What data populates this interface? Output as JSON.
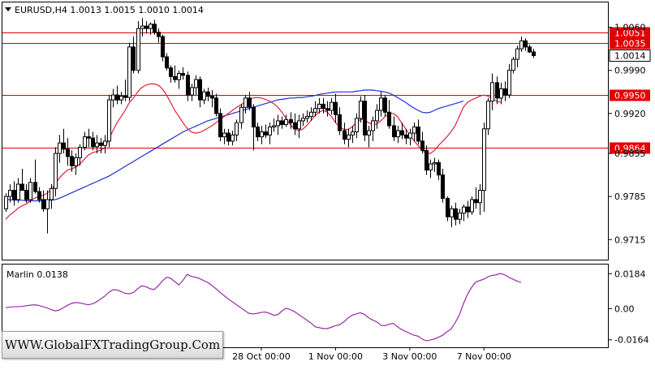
{
  "chart_data": [
    {
      "type": "candlestick",
      "symbol_header": "EURUSD,H4  1.0013 1.0015 1.0010 1.0014",
      "ylim": [
        0.9685,
        1.0078
      ],
      "y_ticks": [
        "1.0060",
        "0.9990",
        "0.9920",
        "0.9855",
        "0.9785",
        "0.9715"
      ],
      "x_labels": [
        {
          "label": "28 Oct 00:00",
          "bar": 62
        },
        {
          "label": "1 Nov 00:00",
          "bar": 80
        },
        {
          "label": "3 Nov 00:00",
          "bar": 98
        },
        {
          "label": "7 Nov 00:00",
          "bar": 116
        }
      ],
      "levels": [
        {
          "label": "1.0051",
          "value": 1.0051,
          "color": "#e00000"
        },
        {
          "label": "1.0035",
          "value": 1.0035,
          "color": "#e00000"
        },
        {
          "label": "0.9950",
          "value": 0.995,
          "color": "#e00000"
        },
        {
          "label": "0.9864",
          "value": 0.9864,
          "color": "#e00000"
        }
      ],
      "current_price": {
        "label": "1.0014",
        "value": 1.0014
      },
      "candles": [
        [
          0.9765,
          0.979,
          0.976,
          0.9785
        ],
        [
          0.9785,
          0.9805,
          0.9775,
          0.9795
        ],
        [
          0.9795,
          0.981,
          0.977,
          0.978
        ],
        [
          0.978,
          0.9815,
          0.9775,
          0.9805
        ],
        [
          0.9805,
          0.983,
          0.9795,
          0.9795
        ],
        [
          0.9795,
          0.9805,
          0.9775,
          0.978
        ],
        [
          0.978,
          0.9815,
          0.9775,
          0.9808
        ],
        [
          0.9808,
          0.9845,
          0.979,
          0.9793
        ],
        [
          0.9793,
          0.98,
          0.9775,
          0.978
        ],
        [
          0.978,
          0.9795,
          0.976,
          0.9765
        ],
        [
          0.9765,
          0.9795,
          0.9725,
          0.978
        ],
        [
          0.978,
          0.9805,
          0.9765,
          0.9798
        ],
        [
          0.9798,
          0.9865,
          0.9785,
          0.9855
        ],
        [
          0.9855,
          0.9885,
          0.984,
          0.9872
        ],
        [
          0.9872,
          0.9895,
          0.9855,
          0.9862
        ],
        [
          0.9862,
          0.988,
          0.9835,
          0.985
        ],
        [
          0.985,
          0.986,
          0.9825,
          0.9835
        ],
        [
          0.9835,
          0.9855,
          0.982,
          0.9848
        ],
        [
          0.9848,
          0.987,
          0.9835,
          0.9865
        ],
        [
          0.9865,
          0.989,
          0.986,
          0.9882
        ],
        [
          0.9882,
          0.9895,
          0.9865,
          0.988
        ],
        [
          0.988,
          0.989,
          0.986,
          0.9866
        ],
        [
          0.9866,
          0.9885,
          0.9855,
          0.9872
        ],
        [
          0.9872,
          0.988,
          0.9855,
          0.9868
        ],
        [
          0.9868,
          0.9885,
          0.9855,
          0.9875
        ],
        [
          0.9875,
          0.995,
          0.9865,
          0.9942
        ],
        [
          0.9942,
          0.996,
          0.993,
          0.995
        ],
        [
          0.995,
          0.9965,
          0.9935,
          0.9942
        ],
        [
          0.9942,
          0.9955,
          0.9935,
          0.9948
        ],
        [
          0.9948,
          0.9975,
          0.994,
          0.9946
        ],
        [
          0.9946,
          1.0035,
          0.994,
          1.0028
        ],
        [
          1.0028,
          1.0045,
          0.9985,
          0.999
        ],
        [
          0.999,
          1.007,
          0.9985,
          1.0058
        ],
        [
          1.0058,
          1.0075,
          1.0045,
          1.0062
        ],
        [
          1.0062,
          1.007,
          1.005,
          1.0058
        ],
        [
          1.0058,
          1.0068,
          1.0048,
          1.0065
        ],
        [
          1.0065,
          1.0072,
          1.0048,
          1.0052
        ],
        [
          1.0052,
          1.0058,
          1.0035,
          1.0045
        ],
        [
          1.0045,
          1.0048,
          1.0005,
          1.0012
        ],
        [
          1.0012,
          1.0018,
          0.999,
          0.9994
        ],
        [
          0.9994,
          0.9998,
          0.997,
          0.998
        ],
        [
          0.998,
          0.9998,
          0.997,
          0.9975
        ],
        [
          0.9975,
          0.999,
          0.996,
          0.9985
        ],
        [
          0.9985,
          0.9995,
          0.9975,
          0.9982
        ],
        [
          0.9982,
          0.9988,
          0.994,
          0.995
        ],
        [
          0.995,
          0.9968,
          0.994,
          0.9962
        ],
        [
          0.9962,
          0.9982,
          0.995,
          0.9975
        ],
        [
          0.9975,
          0.998,
          0.993,
          0.9942
        ],
        [
          0.9942,
          0.996,
          0.9935,
          0.9955
        ],
        [
          0.9955,
          0.9962,
          0.994,
          0.9948
        ],
        [
          0.9948,
          0.9958,
          0.993,
          0.9945
        ],
        [
          0.9945,
          0.9952,
          0.9915,
          0.992
        ],
        [
          0.992,
          0.9928,
          0.9875,
          0.9882
        ],
        [
          0.9882,
          0.9895,
          0.987,
          0.9888
        ],
        [
          0.9888,
          0.9895,
          0.9868,
          0.9875
        ],
        [
          0.9875,
          0.9892,
          0.9868,
          0.9885
        ],
        [
          0.9885,
          0.991,
          0.9875,
          0.9905
        ],
        [
          0.9905,
          0.9935,
          0.9895,
          0.993
        ],
        [
          0.993,
          0.995,
          0.992,
          0.9945
        ],
        [
          0.9945,
          0.9955,
          0.9925,
          0.993
        ],
        [
          0.993,
          0.9935,
          0.986,
          0.9898
        ],
        [
          0.9898,
          0.9905,
          0.9875,
          0.9882
        ],
        [
          0.9882,
          0.99,
          0.987,
          0.989
        ],
        [
          0.989,
          0.9902,
          0.988,
          0.9885
        ],
        [
          0.9885,
          0.9905,
          0.987,
          0.9898
        ],
        [
          0.9898,
          0.9912,
          0.989,
          0.99
        ],
        [
          0.99,
          0.9918,
          0.9885,
          0.9908
        ],
        [
          0.9908,
          0.9915,
          0.9895,
          0.9902
        ],
        [
          0.9902,
          0.9918,
          0.9898,
          0.991
        ],
        [
          0.991,
          0.9922,
          0.9895,
          0.9905
        ],
        [
          0.9905,
          0.992,
          0.9885,
          0.9895
        ],
        [
          0.9895,
          0.9918,
          0.988,
          0.9908
        ],
        [
          0.9908,
          0.992,
          0.99,
          0.9912
        ],
        [
          0.9912,
          0.9925,
          0.9905,
          0.9915
        ],
        [
          0.9915,
          0.993,
          0.9908,
          0.9922
        ],
        [
          0.9922,
          0.994,
          0.9915,
          0.9928
        ],
        [
          0.9928,
          0.9945,
          0.992,
          0.9935
        ],
        [
          0.9935,
          0.9945,
          0.992,
          0.9928
        ],
        [
          0.9928,
          0.994,
          0.9915,
          0.9925
        ],
        [
          0.9925,
          0.9945,
          0.9918,
          0.9938
        ],
        [
          0.9938,
          0.9952,
          0.9905,
          0.9918
        ],
        [
          0.9918,
          0.993,
          0.9885,
          0.9892
        ],
        [
          0.9892,
          0.9905,
          0.987,
          0.9878
        ],
        [
          0.9878,
          0.9895,
          0.9865,
          0.9885
        ],
        [
          0.9885,
          0.99,
          0.9872,
          0.989
        ],
        [
          0.989,
          0.992,
          0.988,
          0.9912
        ],
        [
          0.9912,
          0.9948,
          0.9905,
          0.994
        ],
        [
          0.994,
          0.995,
          0.9875,
          0.9885
        ],
        [
          0.9885,
          0.99,
          0.9865,
          0.9892
        ],
        [
          0.9892,
          0.9915,
          0.9875,
          0.9908
        ],
        [
          0.9908,
          0.9935,
          0.9895,
          0.9925
        ],
        [
          0.9925,
          0.9955,
          0.9915,
          0.9945
        ],
        [
          0.9945,
          0.995,
          0.9915,
          0.9922
        ],
        [
          0.9922,
          0.9942,
          0.9895,
          0.99
        ],
        [
          0.99,
          0.9915,
          0.9875,
          0.9882
        ],
        [
          0.9882,
          0.99,
          0.9872,
          0.9892
        ],
        [
          0.9892,
          0.9905,
          0.9878,
          0.9885
        ],
        [
          0.9885,
          0.9895,
          0.987,
          0.988
        ],
        [
          0.988,
          0.9895,
          0.9868,
          0.9888
        ],
        [
          0.9888,
          0.9905,
          0.9875,
          0.9898
        ],
        [
          0.9898,
          0.991,
          0.987,
          0.9875
        ],
        [
          0.9875,
          0.989,
          0.9855,
          0.986
        ],
        [
          0.986,
          0.9868,
          0.982,
          0.9828
        ],
        [
          0.9828,
          0.9845,
          0.9815,
          0.9838
        ],
        [
          0.9838,
          0.9848,
          0.9825,
          0.984
        ],
        [
          0.984,
          0.9845,
          0.9812,
          0.982
        ],
        [
          0.982,
          0.983,
          0.9775,
          0.9782
        ],
        [
          0.9782,
          0.9785,
          0.9745,
          0.9752
        ],
        [
          0.9752,
          0.977,
          0.9735,
          0.9765
        ],
        [
          0.9765,
          0.9775,
          0.9738,
          0.9748
        ],
        [
          0.9748,
          0.9765,
          0.974,
          0.9758
        ],
        [
          0.9758,
          0.9772,
          0.9745,
          0.9768
        ],
        [
          0.9768,
          0.9778,
          0.975,
          0.976
        ],
        [
          0.976,
          0.9785,
          0.9755,
          0.978
        ],
        [
          0.978,
          0.98,
          0.9765,
          0.9775
        ],
        [
          0.9775,
          0.9805,
          0.9755,
          0.9795
        ],
        [
          0.9795,
          0.9905,
          0.976,
          0.9895
        ],
        [
          0.9895,
          0.9945,
          0.9885,
          0.994
        ],
        [
          0.994,
          0.9985,
          0.9925,
          0.997
        ],
        [
          0.997,
          0.998,
          0.9935,
          0.9945
        ],
        [
          0.9945,
          0.997,
          0.9935,
          0.996
        ],
        [
          0.996,
          0.9972,
          0.994,
          0.995
        ],
        [
          0.995,
          1.0,
          0.9945,
          0.999
        ],
        [
          0.999,
          1.0012,
          0.9985,
          1.0008
        ],
        [
          1.0008,
          1.003,
          0.9995,
          1.0025
        ],
        [
          1.0025,
          1.0045,
          1.002,
          1.0038
        ],
        [
          1.0038,
          1.0042,
          1.0022,
          1.0028
        ],
        [
          1.0028,
          1.0032,
          1.0018,
          1.002
        ],
        [
          1.002,
          1.0025,
          1.001,
          1.0014
        ]
      ],
      "ma_red": [
        0.9748,
        0.9755,
        0.976,
        0.9766,
        0.977,
        0.9773,
        0.9778,
        0.9782,
        0.9785,
        0.9787,
        0.979,
        0.9796,
        0.9805,
        0.9815,
        0.9822,
        0.9828,
        0.983,
        0.9833,
        0.9838,
        0.9845,
        0.9852,
        0.9856,
        0.9858,
        0.986,
        0.9864,
        0.9878,
        0.9892,
        0.9905,
        0.9915,
        0.9925,
        0.9938,
        0.9945,
        0.9955,
        0.9962,
        0.9966,
        0.9968,
        0.9968,
        0.9966,
        0.996,
        0.995,
        0.9938,
        0.9925,
        0.9915,
        0.9905,
        0.9896,
        0.989,
        0.9888,
        0.9889,
        0.9892,
        0.9896,
        0.99,
        0.9905,
        0.991,
        0.9915,
        0.992,
        0.9925,
        0.993,
        0.9934,
        0.9938,
        0.9942,
        0.9945,
        0.9946,
        0.9945,
        0.9943,
        0.994,
        0.9936,
        0.993,
        0.9922,
        0.9912,
        0.9902,
        0.9895,
        0.9892,
        0.9894,
        0.99,
        0.9908,
        0.9916,
        0.9922,
        0.9925,
        0.9922,
        0.9915,
        0.9905,
        0.9898,
        0.9894,
        0.9894,
        0.9898,
        0.9905,
        0.991,
        0.991,
        0.9905,
        0.9902,
        0.9903,
        0.9908,
        0.9915,
        0.992,
        0.992,
        0.9915,
        0.9905,
        0.9895,
        0.9885,
        0.9876,
        0.9868,
        0.986,
        0.9855,
        0.9855,
        0.986,
        0.9868,
        0.9875,
        0.9882,
        0.989,
        0.99,
        0.9915,
        0.993,
        0.9938,
        0.9942,
        0.9945,
        0.9948,
        0.995,
        0.9948,
        0.9944,
        0.994,
        0.9938
      ],
      "ma_blue": [
        0.978,
        0.978,
        0.9779,
        0.9779,
        0.9779,
        0.9778,
        0.9778,
        0.9778,
        0.9778,
        0.9778,
        0.9778,
        0.9779,
        0.978,
        0.9782,
        0.9785,
        0.9788,
        0.9791,
        0.9794,
        0.9797,
        0.98,
        0.9803,
        0.9806,
        0.9809,
        0.9812,
        0.9815,
        0.9818,
        0.9822,
        0.9826,
        0.983,
        0.9834,
        0.9838,
        0.9842,
        0.9846,
        0.985,
        0.9854,
        0.9858,
        0.9862,
        0.9866,
        0.987,
        0.9874,
        0.9878,
        0.9882,
        0.9886,
        0.989,
        0.9893,
        0.9896,
        0.9899,
        0.9902,
        0.9905,
        0.9908,
        0.991,
        0.9912,
        0.9914,
        0.9916,
        0.9918,
        0.992,
        0.9922,
        0.9924,
        0.9926,
        0.9928,
        0.993,
        0.9932,
        0.9934,
        0.9936,
        0.9938,
        0.994,
        0.9942,
        0.9943,
        0.9944,
        0.9945,
        0.9945,
        0.9946,
        0.9946,
        0.9947,
        0.9948,
        0.9949,
        0.9951,
        0.9952,
        0.9953,
        0.9954,
        0.9955,
        0.9955,
        0.9955,
        0.9955,
        0.9955,
        0.9956,
        0.9957,
        0.9958,
        0.9958,
        0.9958,
        0.9957,
        0.9956,
        0.9955,
        0.9953,
        0.995,
        0.9946,
        0.9942,
        0.9938,
        0.9933,
        0.9929,
        0.9925,
        0.9922,
        0.9921,
        0.9922,
        0.9925,
        0.9928,
        0.993,
        0.9932,
        0.9934,
        0.9936,
        0.9938,
        0.994
      ]
    },
    {
      "type": "line",
      "title": "Marlin 0.0138",
      "ylim": [
        -0.0195,
        0.0215
      ],
      "y_ticks": [
        "0.0184",
        "0.00",
        "-0.0164"
      ],
      "values": [
        0.0005,
        0.0008,
        0.001,
        0.001,
        0.0012,
        0.0015,
        0.0018,
        0.002,
        0.0017,
        0.001,
        0.0004,
        -0.0005,
        -0.0012,
        -0.0008,
        0.0005,
        0.0018,
        0.0028,
        0.0032,
        0.003,
        0.0025,
        0.002,
        0.0025,
        0.0035,
        0.005,
        0.0065,
        0.0085,
        0.01,
        0.0098,
        0.009,
        0.008,
        0.0078,
        0.0085,
        0.0105,
        0.012,
        0.0115,
        0.0105,
        0.01,
        0.012,
        0.0145,
        0.0165,
        0.016,
        0.0142,
        0.0125,
        0.0148,
        0.018,
        0.017,
        0.0165,
        0.0158,
        0.0148,
        0.0138,
        0.0122,
        0.0105,
        0.0085,
        0.0068,
        0.005,
        0.0035,
        0.002,
        0.0005,
        -0.001,
        -0.0025,
        -0.0028,
        -0.0025,
        -0.002,
        -0.0018,
        -0.0025,
        -0.0035,
        -0.0032,
        -0.0012,
        0.0002,
        -0.0005,
        -0.0015,
        -0.003,
        -0.0045,
        -0.006,
        -0.0075,
        -0.0095,
        -0.01,
        -0.0105,
        -0.0105,
        -0.0098,
        -0.009,
        -0.0085,
        -0.007,
        -0.005,
        -0.0035,
        -0.0028,
        -0.0022,
        -0.003,
        -0.0048,
        -0.006,
        -0.007,
        -0.0088,
        -0.009,
        -0.0082,
        -0.0078,
        -0.0095,
        -0.011,
        -0.012,
        -0.013,
        -0.014,
        -0.0145,
        -0.016,
        -0.017,
        -0.0165,
        -0.016,
        -0.015,
        -0.014,
        -0.0122,
        -0.0108,
        -0.0075,
        -0.0035,
        0.0025,
        0.0075,
        0.0112,
        0.014,
        0.0148,
        0.0155,
        0.0168,
        0.0175,
        0.0178,
        0.0185,
        0.0178,
        0.0165,
        0.0155,
        0.0145,
        0.0138
      ]
    }
  ],
  "watermark": "WWW.GlobalFXTradingGroup.Com"
}
